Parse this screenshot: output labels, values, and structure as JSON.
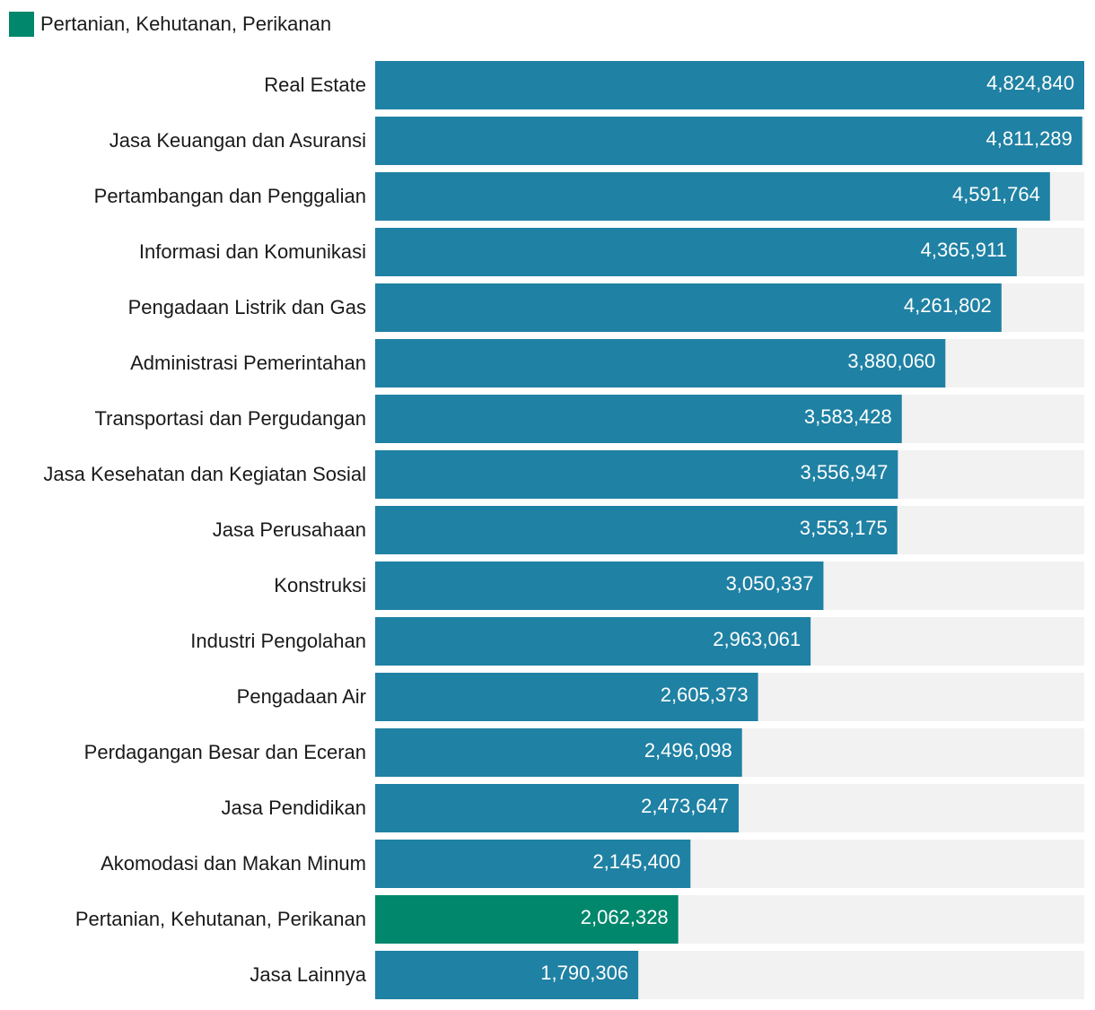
{
  "legend": {
    "label": "Pertanian, Kehutanan, Perikanan",
    "color": "#00876c"
  },
  "colors": {
    "bar": "#1f81a3",
    "highlight": "#00876c",
    "track": "#f2f2f2",
    "value_text": "#ffffff",
    "label_text": "#1a1a1a"
  },
  "chart_data": {
    "type": "bar",
    "orientation": "horizontal",
    "highlight_category": "Pertanian, Kehutanan, Perikanan",
    "xlim": [
      0,
      4824840
    ],
    "categories": [
      "Real Estate",
      "Jasa Keuangan dan Asuransi",
      "Pertambangan dan Penggalian",
      "Informasi dan Komunikasi",
      "Pengadaan Listrik dan Gas",
      "Administrasi Pemerintahan",
      "Transportasi dan Pergudangan",
      "Jasa Kesehatan dan Kegiatan Sosial",
      "Jasa Perusahaan",
      "Konstruksi",
      "Industri Pengolahan",
      "Pengadaan Air",
      "Perdagangan Besar dan Eceran",
      "Jasa Pendidikan",
      "Akomodasi dan Makan Minum",
      "Pertanian, Kehutanan, Perikanan",
      "Jasa Lainnya"
    ],
    "values": [
      4824840,
      4811289,
      4591764,
      4365911,
      4261802,
      3880060,
      3583428,
      3556947,
      3553175,
      3050337,
      2963061,
      2605373,
      2496098,
      2473647,
      2145400,
      2062328,
      1790306
    ],
    "value_labels": [
      "4,824,840",
      "4,811,289",
      "4,591,764",
      "4,365,911",
      "4,261,802",
      "3,880,060",
      "3,583,428",
      "3,556,947",
      "3,553,175",
      "3,050,337",
      "2,963,061",
      "2,605,373",
      "2,496,098",
      "2,473,647",
      "2,145,400",
      "2,062,328",
      "1,790,306"
    ]
  }
}
